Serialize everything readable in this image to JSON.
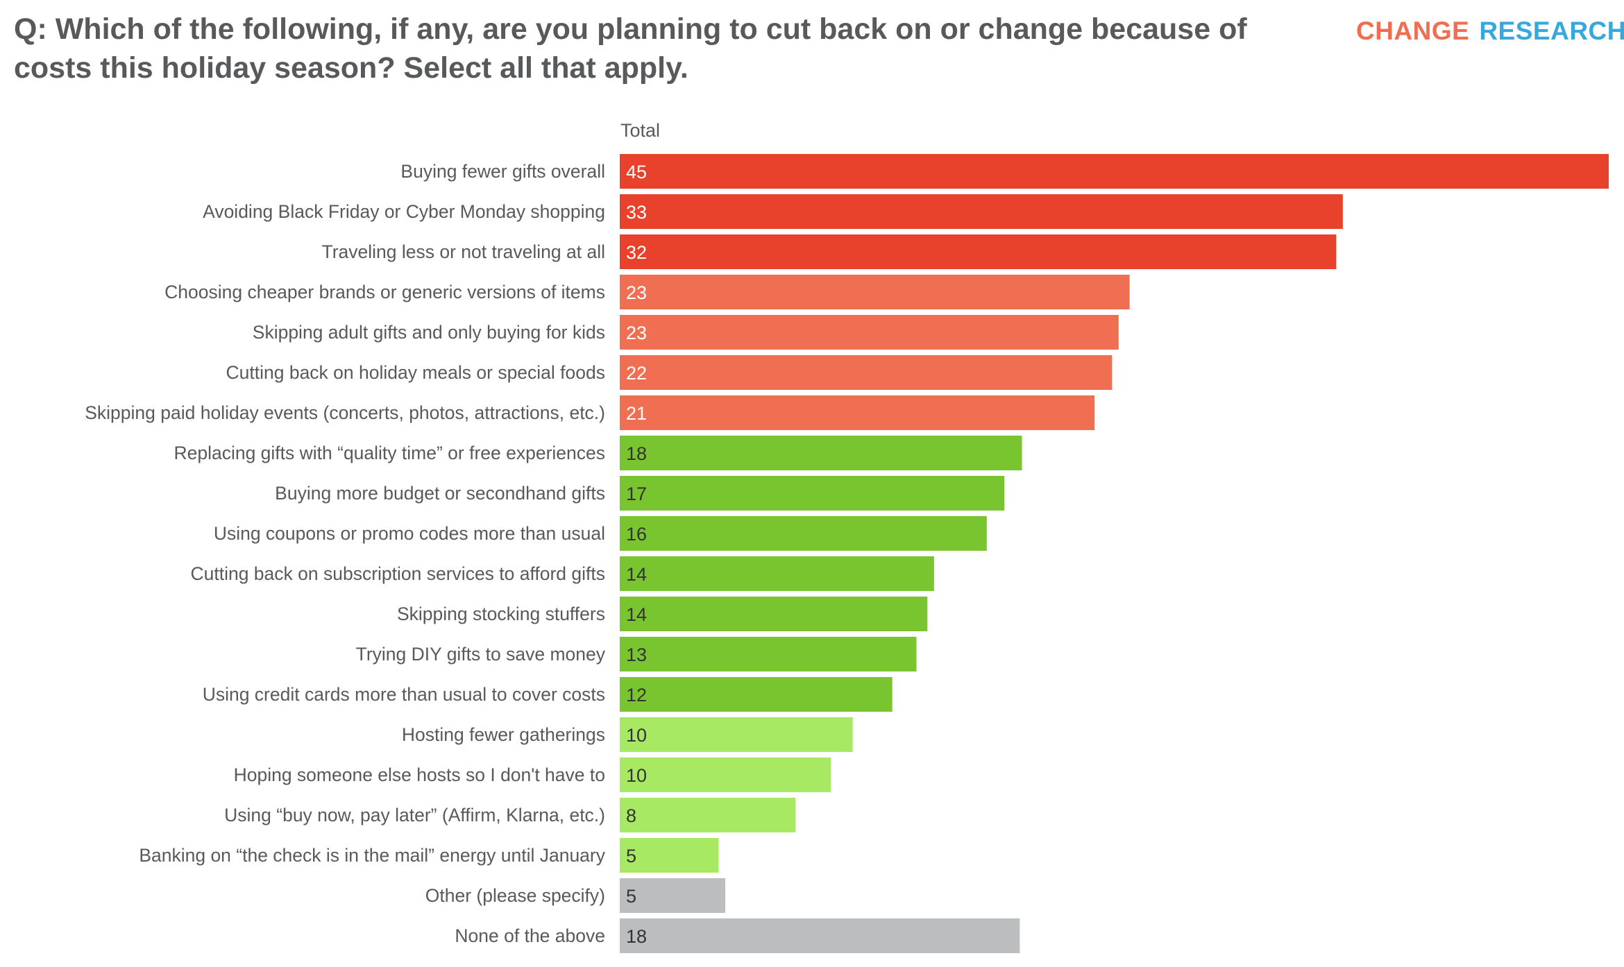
{
  "header": {
    "title": "Q: Which of the following, if any, are you planning to cut back on or change because of costs this holiday season? Select all that apply.",
    "logo": {
      "word1": "CHANGE",
      "word2": "RESEARCH",
      "trademark": "™",
      "color1": "#f26c4f",
      "color2": "#36a8de"
    }
  },
  "chart_data": {
    "type": "bar",
    "orientation": "horizontal",
    "title": "Q: Which of the following, if any, are you planning to cut back on or change because of costs this holiday season? Select all that apply.",
    "column_header": "Total",
    "xlabel": "",
    "ylabel": "",
    "xlim": [
      0,
      45
    ],
    "grid": false,
    "legend": "none",
    "categories": [
      "Buying fewer gifts overall",
      "Avoiding Black Friday or Cyber Monday shopping",
      "Traveling less or not traveling at all",
      "Choosing cheaper brands or generic versions of items",
      "Skipping adult gifts and only buying for kids",
      "Cutting back on holiday meals or special foods",
      "Skipping paid holiday events (concerts, photos, attractions, etc.)",
      "Replacing gifts with “quality time” or free experiences",
      "Buying more budget or secondhand gifts",
      "Using coupons or promo codes more than usual",
      "Cutting back on subscription services to afford gifts",
      "Skipping stocking stuffers",
      "Trying DIY gifts to save money",
      "Using credit cards more than usual to cover costs",
      "Hosting fewer gatherings",
      "Hoping someone else hosts so I don't have to",
      "Using “buy now, pay later” (Affirm, Klarna, etc.)",
      "Banking on “the check is in the mail” energy until January",
      "Other (please specify)",
      "None of the above"
    ],
    "series": [
      {
        "name": "Total",
        "values": [
          45,
          33,
          32,
          23,
          23,
          22,
          21,
          18,
          17,
          16,
          14,
          14,
          13,
          12,
          10,
          10,
          8,
          5,
          5,
          18
        ],
        "bar_lengths_estimated": [
          45.0,
          32.9,
          32.6,
          23.2,
          22.7,
          22.4,
          21.6,
          18.3,
          17.5,
          16.7,
          14.3,
          14.0,
          13.5,
          12.4,
          10.6,
          9.6,
          8.0,
          4.5,
          4.8,
          18.2
        ],
        "color_groups": [
          "red",
          "red",
          "red",
          "salmon",
          "salmon",
          "salmon",
          "salmon",
          "green",
          "green",
          "green",
          "green",
          "green",
          "green",
          "green",
          "lightgreen",
          "lightgreen",
          "lightgreen",
          "lightgreen",
          "grey",
          "grey"
        ]
      }
    ],
    "palette": {
      "red": {
        "fill": "#e8412c",
        "text": "#ffffff"
      },
      "salmon": {
        "fill": "#f06e52",
        "text": "#ffffff"
      },
      "green": {
        "fill": "#78c530",
        "text": "#333333"
      },
      "lightgreen": {
        "fill": "#a8e963",
        "text": "#333333"
      },
      "grey": {
        "fill": "#bcbdbf",
        "text": "#333333"
      }
    }
  }
}
